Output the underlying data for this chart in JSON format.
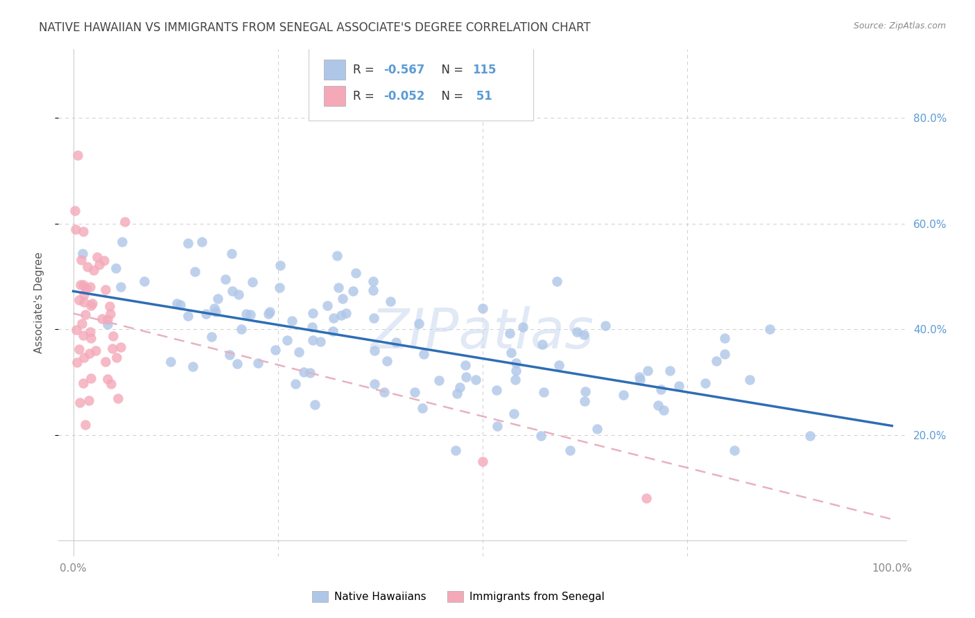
{
  "title": "NATIVE HAWAIIAN VS IMMIGRANTS FROM SENEGAL ASSOCIATE'S DEGREE CORRELATION CHART",
  "source": "Source: ZipAtlas.com",
  "ylabel": "Associate's Degree",
  "watermark": "ZIPatlas",
  "native_hawaiian_color": "#aec6e8",
  "senegal_color": "#f4a8b8",
  "trendline_hawaiian_color": "#2e6db4",
  "trendline_senegal_color": "#e8b0c0",
  "background_color": "#ffffff",
  "grid_color": "#cccccc",
  "right_axis_label_color": "#5b9bd5",
  "legend_text_color": "#5b9bd5",
  "title_color": "#444444",
  "source_color": "#888888",
  "ylabel_color": "#555555",
  "title_fontsize": 12,
  "ylabel_fontsize": 11,
  "legend_fontsize": 12,
  "tick_fontsize": 11,
  "nh_intercept": 0.472,
  "nh_slope": -0.255,
  "sg_intercept": 0.43,
  "sg_slope": -0.39
}
